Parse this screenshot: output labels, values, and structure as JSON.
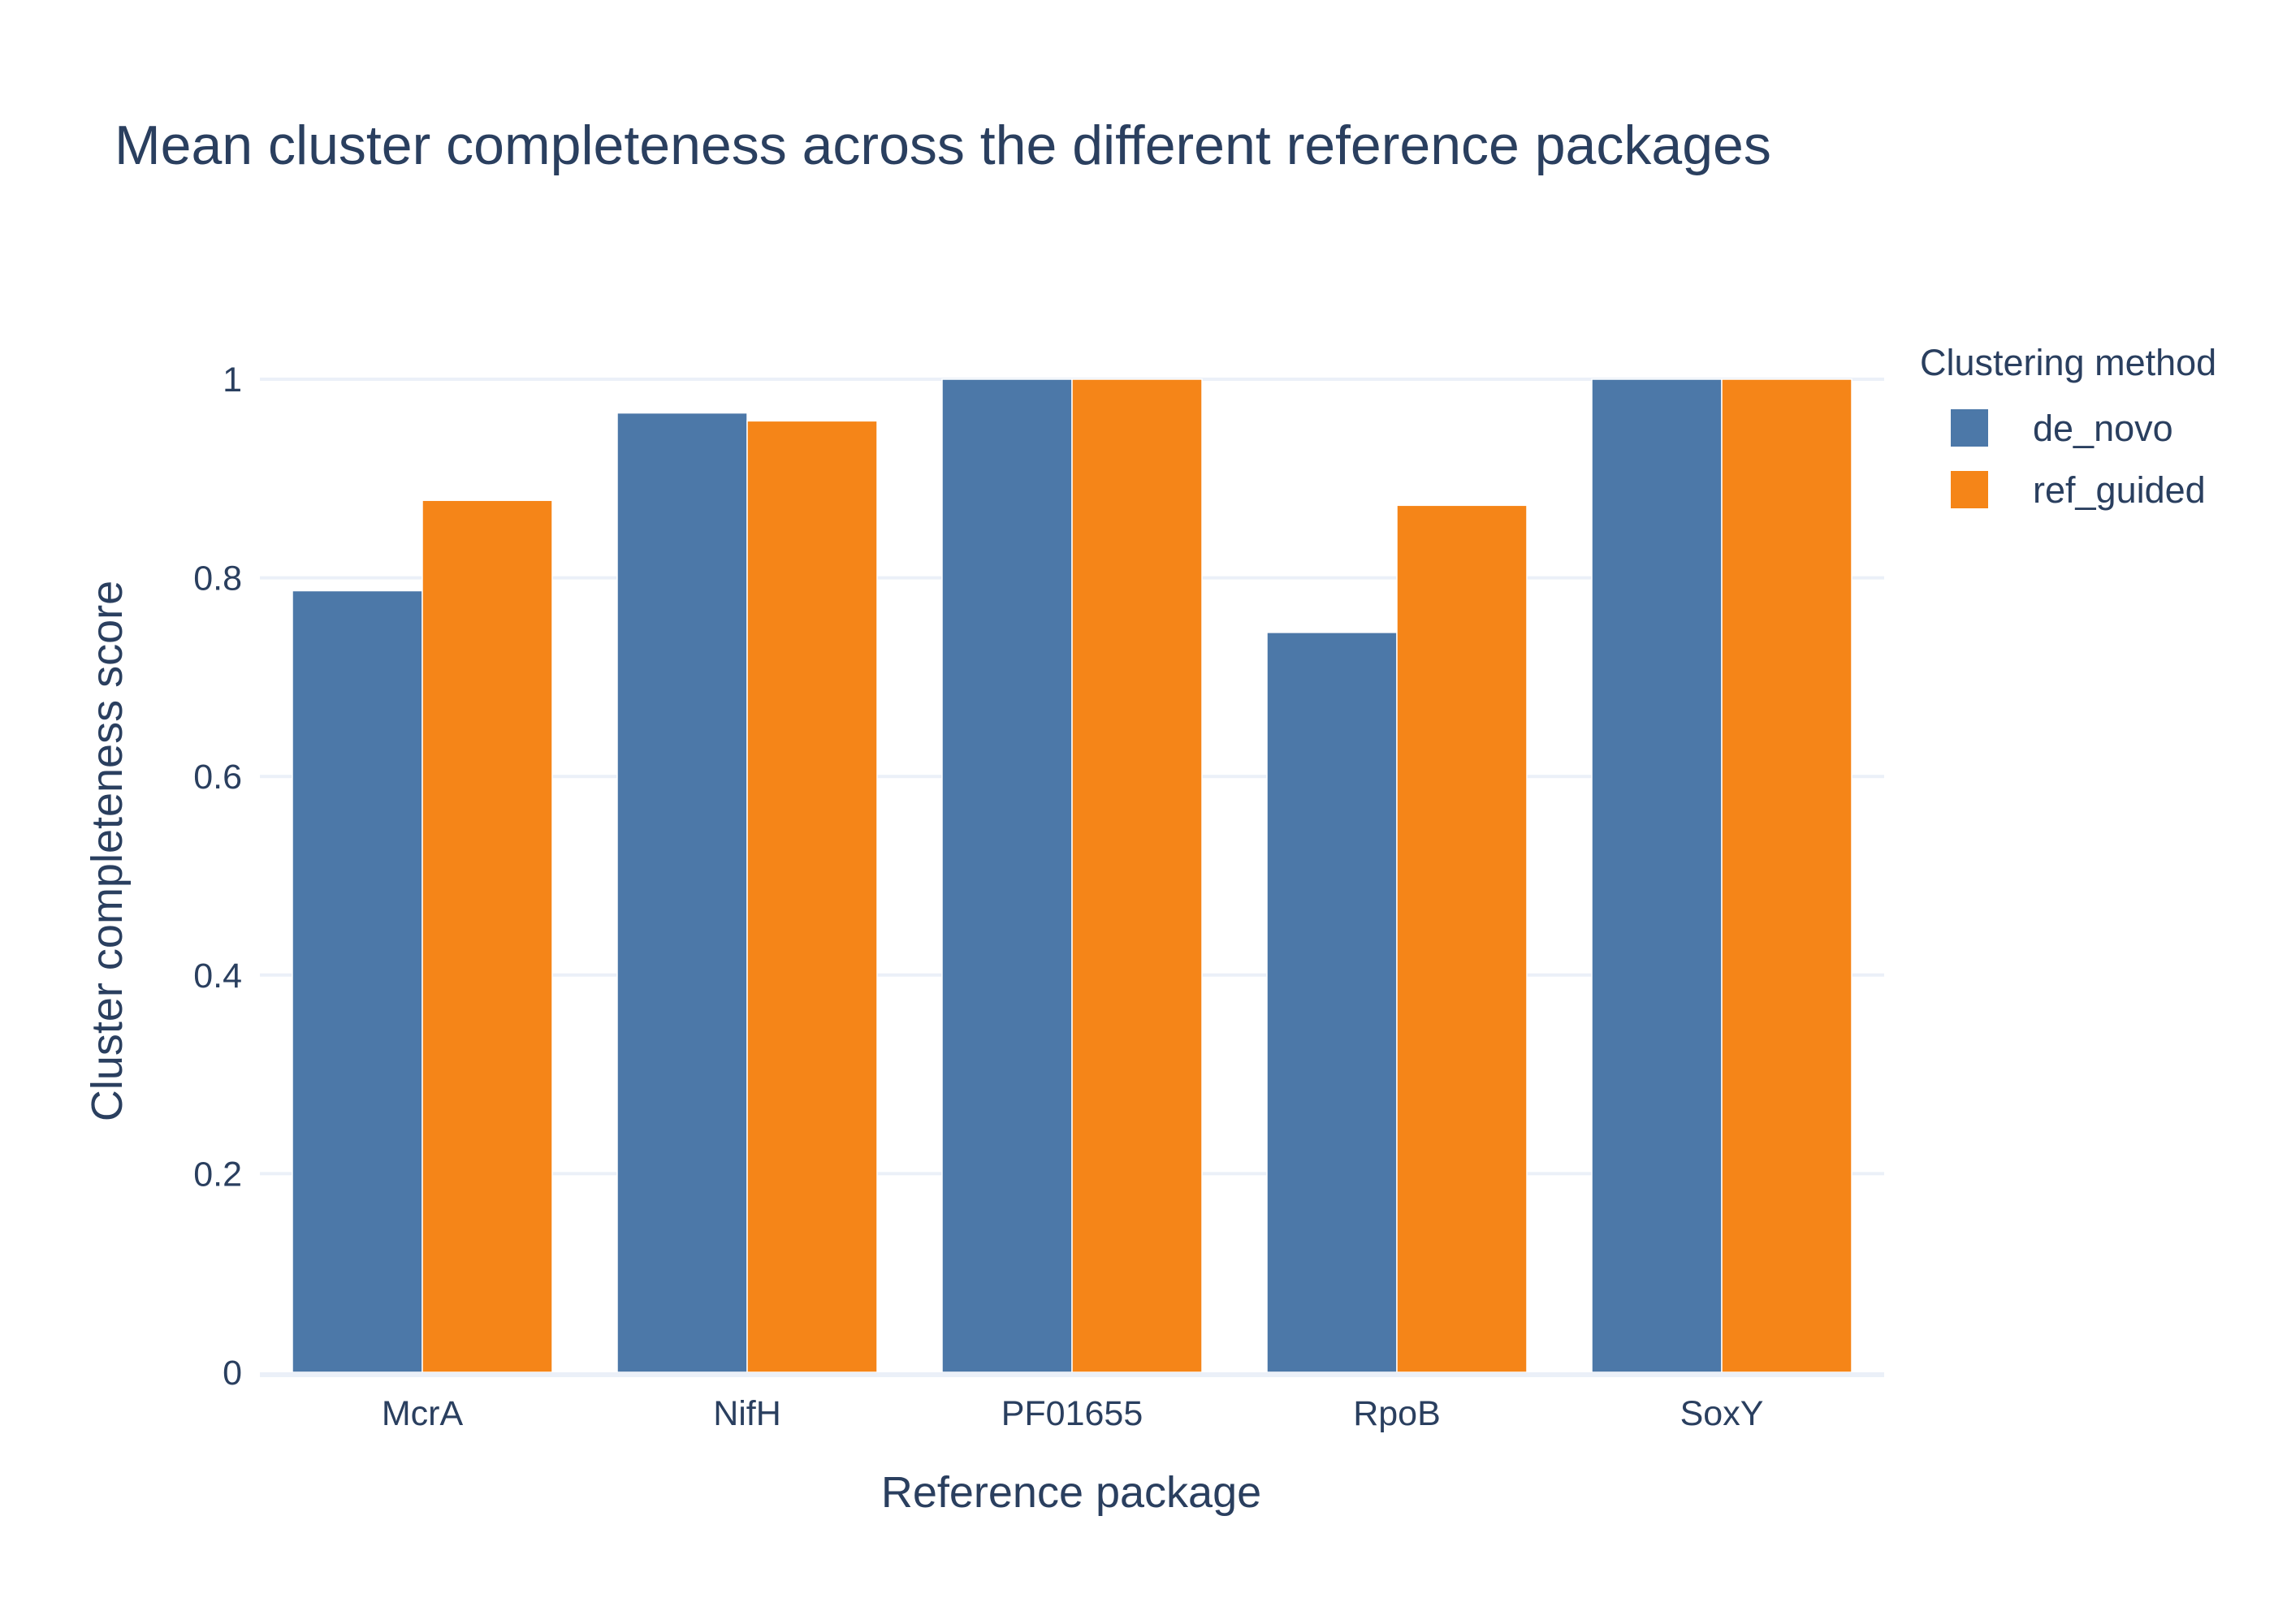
{
  "chart_data": {
    "type": "bar",
    "title": "Mean cluster completeness across the different reference packages",
    "xlabel": "Reference package",
    "ylabel": "Cluster completeness score",
    "categories": [
      "McrA",
      "NifH",
      "PF01655",
      "RpoB",
      "SoxY"
    ],
    "series": [
      {
        "name": "de_novo",
        "color": "#4c78a8",
        "values": [
          0.787,
          0.966,
          1.0,
          0.745,
          1.0
        ]
      },
      {
        "name": "ref_guided",
        "color": "#f58518",
        "values": [
          0.878,
          0.958,
          1.0,
          0.873,
          1.0
        ]
      }
    ],
    "ylim": [
      0,
      1
    ],
    "yticks": [
      0,
      0.2,
      0.4,
      0.6,
      0.8,
      1
    ],
    "ytick_labels": [
      "0",
      "0.2",
      "0.4",
      "0.6",
      "0.8",
      "1"
    ],
    "grid": true,
    "legend": {
      "title": "Clustering method",
      "placement": "top-right"
    }
  }
}
